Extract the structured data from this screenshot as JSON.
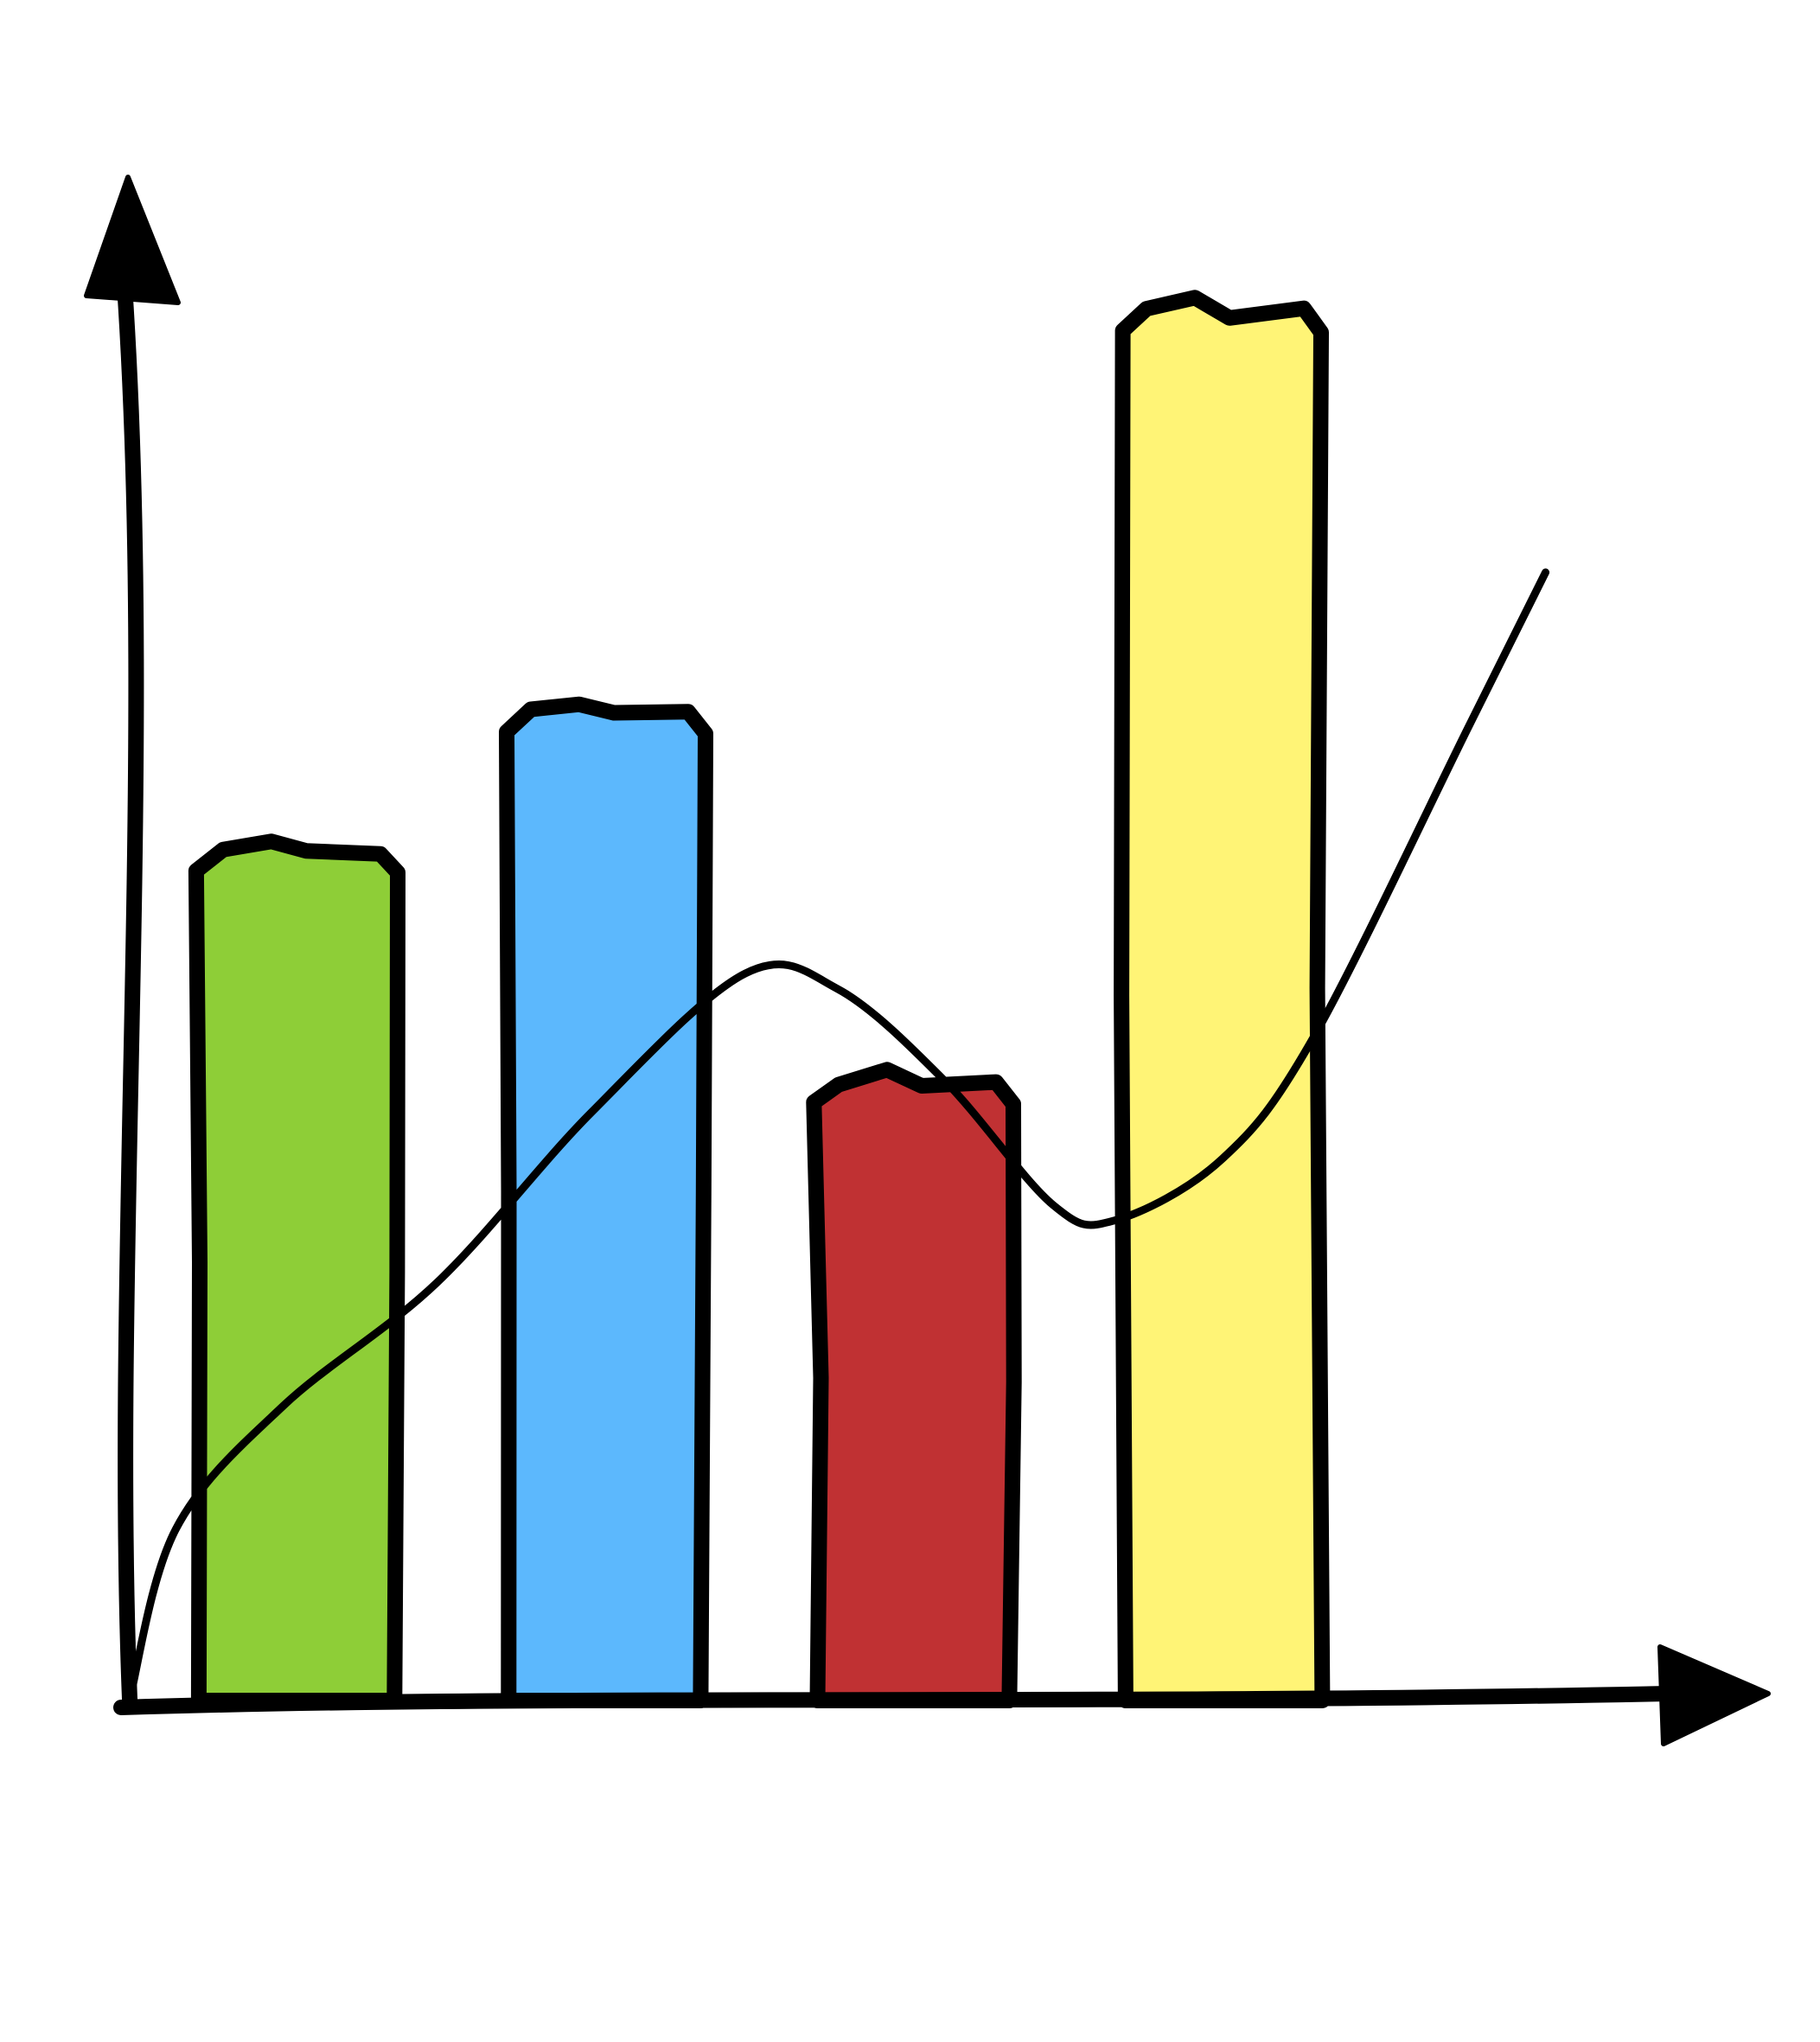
{
  "chart_data": {
    "type": "bar",
    "style": "hand-drawn doodle",
    "categories": [
      "",
      "",
      "",
      ""
    ],
    "values": [
      5.5,
      6.4,
      4.0,
      9.0
    ],
    "bar_colors": [
      "#8ece37",
      "#5cb8fd",
      "#c03133",
      "#fff476"
    ],
    "outline_color": "#000000",
    "ylim": [
      0,
      10
    ],
    "grid": false,
    "legend": "none",
    "axes": {
      "x_arrow": true,
      "y_arrow": true
    },
    "line_series": {
      "type": "line",
      "x": [
        0,
        0.15,
        0.5,
        1.0,
        1.5,
        2.0,
        2.3,
        2.65,
        3.0,
        3.2,
        3.55,
        3.85,
        4.35,
        4.6
      ],
      "values": [
        0,
        1.1,
        1.9,
        2.7,
        3.8,
        4.7,
        4.6,
        4.0,
        3.2,
        3.1,
        3.5,
        4.3,
        6.3,
        7.3
      ]
    }
  }
}
